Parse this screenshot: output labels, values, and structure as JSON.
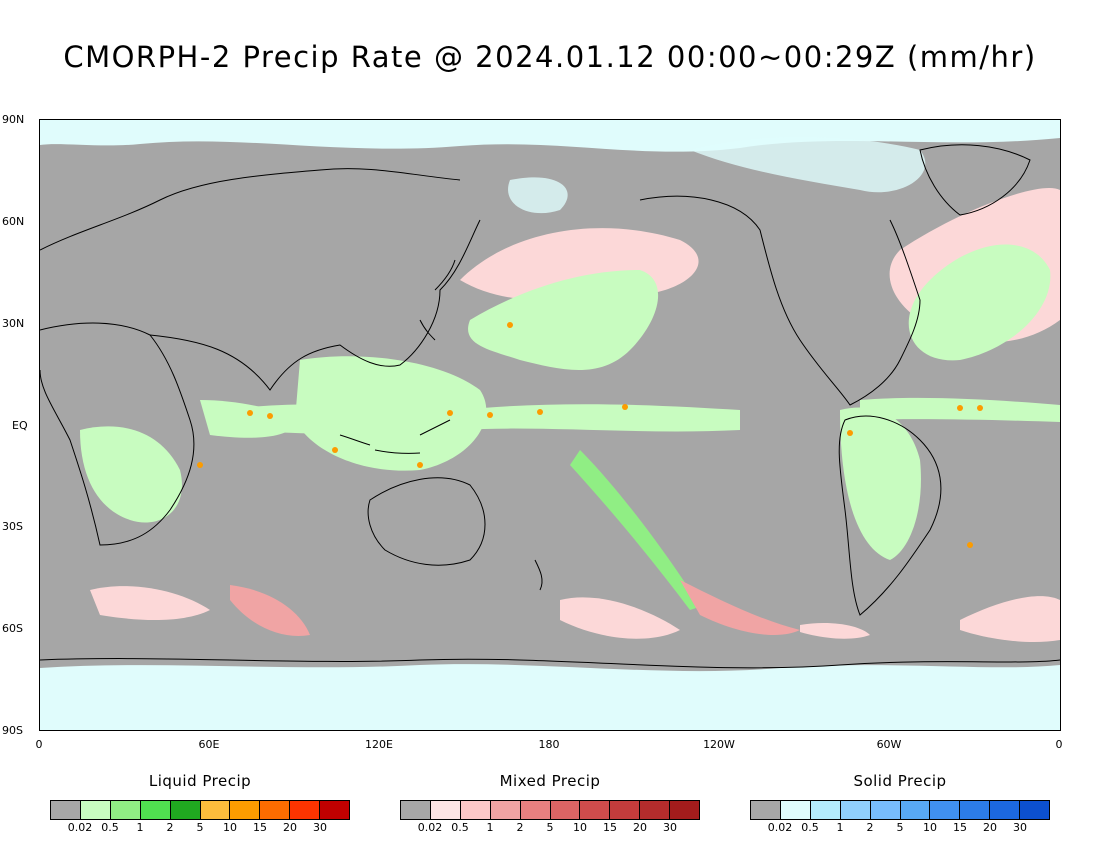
{
  "title": "CMORPH-2 Precip Rate @ 2024.01.12 00:00~00:29Z (mm/hr)",
  "map": {
    "lat_labels": [
      "90N",
      "60N",
      "30N",
      "EQ",
      "30S",
      "60S",
      "90S"
    ],
    "lon_labels": [
      "0",
      "60E",
      "120E",
      "180",
      "120W",
      "60W",
      "0"
    ],
    "background_color": "#a6a6a6"
  },
  "legends": [
    {
      "title": "Liquid Precip",
      "colors": [
        "#a6a6a6",
        "#c8fcc0",
        "#90ee84",
        "#50e050",
        "#20a820",
        "#fcbc3c",
        "#fc9c00",
        "#fc6c00",
        "#fc3400",
        "#c00000"
      ],
      "ticks": [
        "0.02",
        "0.5",
        "1",
        "2",
        "5",
        "10",
        "15",
        "20",
        "30"
      ]
    },
    {
      "title": "Mixed Precip",
      "colors": [
        "#a6a6a6",
        "#fce4e4",
        "#fcc8c8",
        "#f0a4a4",
        "#e88080",
        "#dc6464",
        "#d04c4c",
        "#c43c3c",
        "#b42c2c",
        "#a41c1c"
      ],
      "ticks": [
        "0.02",
        "0.5",
        "1",
        "2",
        "5",
        "10",
        "15",
        "20",
        "30"
      ]
    },
    {
      "title": "Solid Precip",
      "colors": [
        "#a6a6a6",
        "#e0fcfc",
        "#b4ecfc",
        "#90d0fc",
        "#78bcfc",
        "#58a8f4",
        "#4090f0",
        "#2c7ce8",
        "#1c68e0",
        "#0c50d0"
      ],
      "ticks": [
        "0.02",
        "0.5",
        "1",
        "2",
        "5",
        "10",
        "15",
        "20",
        "30"
      ]
    }
  ]
}
